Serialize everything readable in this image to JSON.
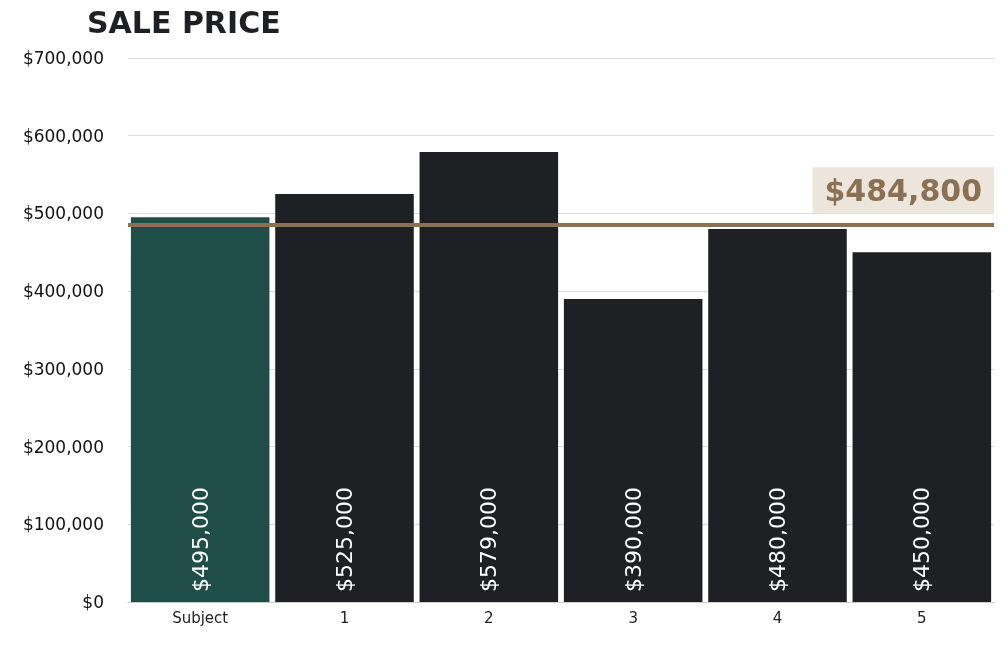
{
  "chart_data": {
    "type": "bar",
    "title": "SALE PRICE",
    "categories": [
      "Subject",
      "1",
      "2",
      "3",
      "4",
      "5"
    ],
    "values": [
      495000,
      525000,
      579000,
      390000,
      480000,
      450000
    ],
    "value_labels": [
      "$495,000",
      "$525,000",
      "$579,000",
      "$390,000",
      "$480,000",
      "$450,000"
    ],
    "colors": [
      "#1f4d47",
      "#1e2023",
      "#1e2023",
      "#1e2023",
      "#1e2023",
      "#1e2023"
    ],
    "ylim": [
      0,
      700000
    ],
    "yticks": [
      {
        "value": 0,
        "label": "$0"
      },
      {
        "value": 100000,
        "label": "$100,000"
      },
      {
        "value": 200000,
        "label": "$200,000"
      },
      {
        "value": 300000,
        "label": "$300,000"
      },
      {
        "value": 400000,
        "label": "$400,000"
      },
      {
        "value": 500000,
        "label": "$500,000"
      },
      {
        "value": 600000,
        "label": "$600,000"
      },
      {
        "value": 700000,
        "label": "$700,000"
      }
    ],
    "ref_lines": [
      {
        "axis": "y",
        "value": 484800,
        "label": "$484,800",
        "color": "#8b7152"
      }
    ],
    "grid": "y"
  }
}
